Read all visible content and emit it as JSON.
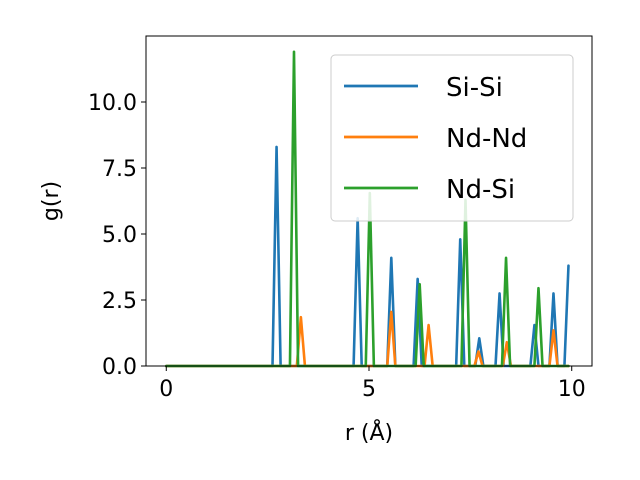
{
  "chart_data": {
    "type": "line",
    "xlabel": "r (Å)",
    "ylabel": "g(r)",
    "xlim": [
      -0.5,
      10.5
    ],
    "ylim": [
      0,
      12.5
    ],
    "xticks": [
      0,
      5,
      10
    ],
    "xtick_labels": [
      "0",
      "5",
      "10"
    ],
    "yticks": [
      0,
      2.5,
      5,
      7.5,
      10
    ],
    "ytick_labels": [
      "0.0",
      "2.5",
      "5.0",
      "7.5",
      "10.0"
    ],
    "grid": false,
    "legend_position": "top-right",
    "series": [
      {
        "name": "Si-Si",
        "color": "#1f77b4",
        "x": [
          0,
          2.62,
          2.72,
          2.82,
          4.62,
          4.72,
          4.82,
          5.45,
          5.55,
          5.65,
          6.1,
          6.2,
          6.3,
          7.15,
          7.25,
          7.35,
          7.62,
          7.72,
          7.82,
          8.12,
          8.22,
          8.32,
          8.98,
          9.08,
          9.18,
          9.45,
          9.55,
          9.65,
          9.82,
          9.92
        ],
        "y": [
          0,
          0,
          8.3,
          0,
          0,
          5.6,
          0,
          0,
          4.1,
          0,
          0,
          3.3,
          0,
          0,
          4.8,
          0,
          0,
          1.05,
          0,
          0,
          2.75,
          0,
          0,
          1.55,
          0,
          0,
          2.75,
          0,
          0,
          3.8
        ]
      },
      {
        "name": "Nd-Nd",
        "color": "#ff7f0e",
        "x": [
          0,
          3.22,
          3.32,
          3.42,
          5.45,
          5.55,
          5.65,
          6.37,
          6.47,
          6.57,
          7.6,
          7.7,
          7.8,
          8.3,
          8.4,
          8.5,
          9.45,
          9.55,
          9.65,
          9.92
        ],
        "y": [
          0,
          0,
          1.85,
          0,
          0,
          2.05,
          0,
          0,
          1.55,
          0,
          0,
          0.55,
          0,
          0,
          0.9,
          0,
          0,
          1.35,
          0,
          0
        ]
      },
      {
        "name": "Nd-Si",
        "color": "#2ca02c",
        "x": [
          0,
          3.05,
          3.15,
          3.25,
          4.92,
          5.02,
          5.12,
          6.15,
          6.25,
          6.35,
          7.28,
          7.38,
          7.48,
          8.28,
          8.38,
          8.48,
          9.08,
          9.18,
          9.28,
          9.92
        ],
        "y": [
          0,
          0,
          11.9,
          0,
          0,
          6.55,
          0,
          0,
          3.1,
          0,
          0,
          6.3,
          0,
          0,
          4.1,
          0,
          0,
          2.95,
          0,
          0
        ]
      }
    ]
  }
}
